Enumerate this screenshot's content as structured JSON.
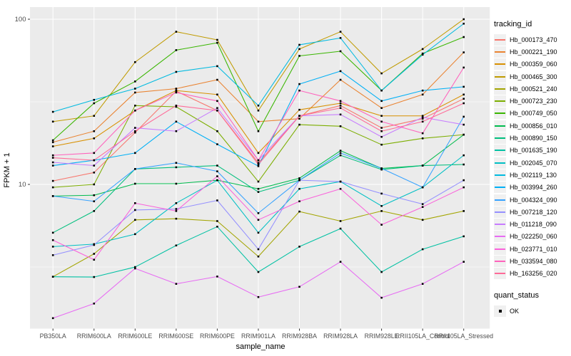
{
  "chart_data": {
    "type": "line",
    "title": "",
    "xlabel": "sample_name",
    "ylabel": "FPKM + 1",
    "y_scale": "log10",
    "y_ticks": [
      10,
      100
    ],
    "y_tick_labels": [
      "10",
      "100"
    ],
    "y_minor_gridlines": [
      3.162,
      31.62
    ],
    "ylim": [
      1.35,
      118
    ],
    "grid": true,
    "legend_position": "right",
    "panel_bg": "#EBEBEB",
    "grid_color": "#FFFFFF",
    "tick_color": "#333333",
    "axis_text_color": "#4D4D4D",
    "marker_color": "#000000",
    "categories": [
      "PB350LA",
      "RRIM600LA",
      "RRIM600LE",
      "RRIM600SE",
      "RRIM600PE",
      "RRIM901LA",
      "RRIM928BA",
      "RRIM928LA",
      "RRIM928LE",
      "RRII105LA_Control",
      "RRII105LA_Stressed"
    ],
    "legend_title": "tracking_id",
    "series": [
      {
        "name": "Hb_000173_470",
        "color": "#F8766D",
        "values": [
          10.5,
          11.8,
          20.6,
          36.7,
          28,
          13.5,
          26,
          30,
          22,
          25,
          33
        ]
      },
      {
        "name": "Hb_000221_190",
        "color": "#EA8331",
        "values": [
          18,
          21,
          36,
          38,
          43,
          24,
          25,
          43,
          29,
          35,
          63
        ]
      },
      {
        "name": "Hb_000359_060",
        "color": "#D89000",
        "values": [
          17,
          19,
          28,
          37,
          35,
          15.5,
          28.3,
          31,
          26,
          26,
          35
        ]
      },
      {
        "name": "Hb_000465_300",
        "color": "#C09B00",
        "values": [
          24,
          26,
          55,
          84,
          75,
          28,
          66,
          84,
          47,
          66,
          100
        ]
      },
      {
        "name": "Hb_000521_240",
        "color": "#A3A500",
        "values": [
          2.76,
          3.8,
          6.1,
          6.2,
          6.0,
          3.66,
          6.85,
          6.0,
          6.9,
          6.1,
          6.9
        ]
      },
      {
        "name": "Hb_000723_230",
        "color": "#7CAE00",
        "values": [
          9.6,
          10.0,
          30,
          29.5,
          21,
          10.4,
          23,
          22.5,
          17.4,
          19,
          20
        ]
      },
      {
        "name": "Hb_000749_050",
        "color": "#39B600",
        "values": [
          18.5,
          31,
          42,
          65,
          72,
          21,
          60,
          64,
          37,
          62,
          78
        ]
      },
      {
        "name": "Hb_000856_010",
        "color": "#00BB4E",
        "values": [
          8.5,
          8.6,
          10.1,
          10.1,
          10.6,
          9.4,
          10.9,
          16,
          12.5,
          13,
          20
        ]
      },
      {
        "name": "Hb_000890_150",
        "color": "#00BF7D",
        "values": [
          5.1,
          6.9,
          12.4,
          12.7,
          13,
          9.0,
          10.6,
          15,
          12.3,
          13,
          13.2
        ]
      },
      {
        "name": "Hb_001635_190",
        "color": "#00C1A3",
        "values": [
          2.76,
          2.75,
          3.16,
          4.27,
          5.55,
          2.95,
          4.2,
          5.4,
          2.95,
          4.05,
          4.85
        ]
      },
      {
        "name": "Hb_002045_070",
        "color": "#00BFC4",
        "values": [
          4.2,
          4.35,
          5.0,
          7.7,
          10.6,
          5.1,
          9.4,
          10.4,
          7.4,
          9.6,
          15
        ]
      },
      {
        "name": "Hb_002119_130",
        "color": "#00BAE0",
        "values": [
          27.5,
          32.5,
          38,
          48,
          52,
          30,
          70,
          77,
          37,
          61,
          94
        ]
      },
      {
        "name": "Hb_003994_260",
        "color": "#00B0F6",
        "values": [
          13,
          14,
          15.5,
          24,
          17.5,
          12.9,
          40.5,
          48.5,
          32,
          37,
          39
        ]
      },
      {
        "name": "Hb_004324_090",
        "color": "#35A2FF",
        "values": [
          8.5,
          7.9,
          12.4,
          13.5,
          12.0,
          6.7,
          10.6,
          15.5,
          12.5,
          9.6,
          25.7
        ]
      },
      {
        "name": "Hb_007218_120",
        "color": "#9590FF",
        "values": [
          3.73,
          4.3,
          7.0,
          7.1,
          8.0,
          4.05,
          10.6,
          10.4,
          8.8,
          7.6,
          10.6
        ]
      },
      {
        "name": "Hb_011218_090",
        "color": "#C77CFF",
        "values": [
          13.6,
          13,
          22,
          21,
          29,
          14,
          26,
          26.5,
          19.4,
          25.5,
          23
        ]
      },
      {
        "name": "Hb_022250_060",
        "color": "#E76BF3",
        "values": [
          1.55,
          1.9,
          3.1,
          2.5,
          2.77,
          2.08,
          2.4,
          3.4,
          2.06,
          2.5,
          3.4
        ]
      },
      {
        "name": "Hb_023771_010",
        "color": "#FA62DB",
        "values": [
          4.6,
          3.5,
          7.7,
          6.9,
          11.2,
          6.1,
          7.9,
          9.4,
          5.7,
          7.3,
          9.6
        ]
      },
      {
        "name": "Hb_033594_080",
        "color": "#FF62BC",
        "values": [
          15,
          15.5,
          28,
          36,
          32,
          14,
          37,
          32,
          24,
          20.4,
          51
        ]
      },
      {
        "name": "Hb_163256_020",
        "color": "#FF6A98",
        "values": [
          14.5,
          14,
          21,
          30,
          28,
          13.2,
          26,
          29,
          21,
          24,
          31
        ]
      }
    ],
    "marker_legend": {
      "title": "quant_status",
      "items": [
        {
          "label": "OK"
        }
      ]
    }
  }
}
